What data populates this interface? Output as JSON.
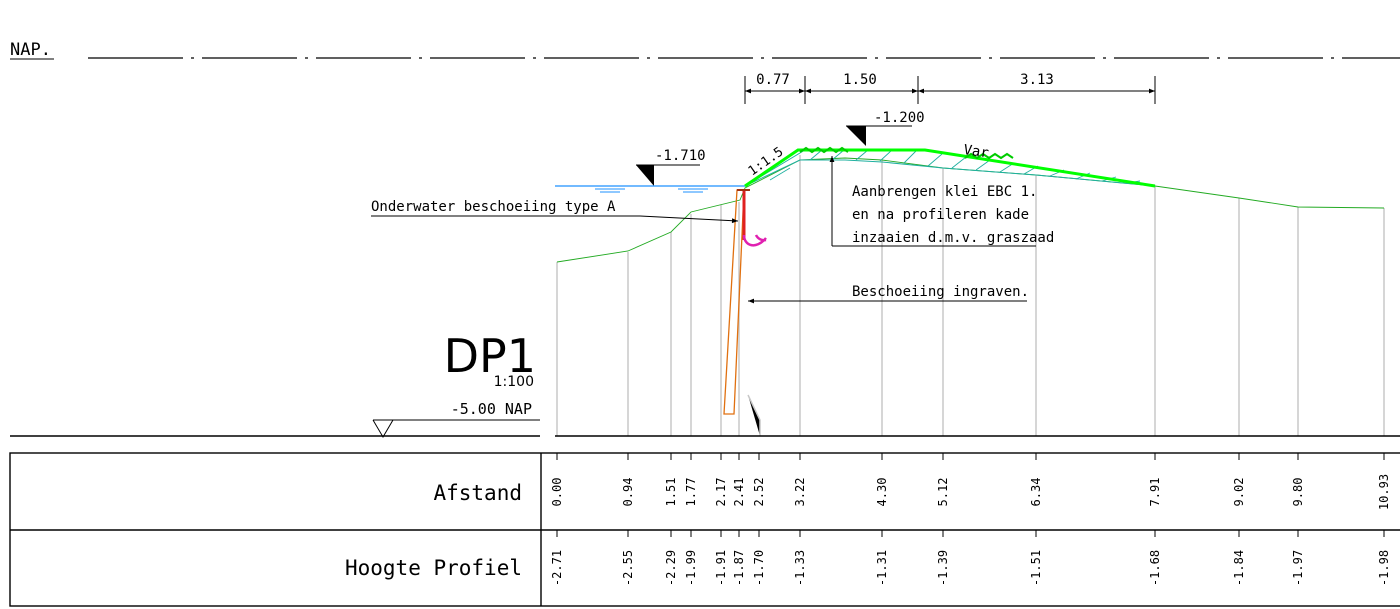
{
  "datum_label": "NAP.",
  "profile_name": "DP1",
  "scale": "1:100",
  "reference_level": "-5.00  NAP",
  "levels": {
    "water": "-1.710",
    "crest": "-1.200"
  },
  "slope_label": "1:1.5",
  "var_label": "Var",
  "dimensions": [
    "0.77",
    "1.50",
    "3.13"
  ],
  "annotations": {
    "onderwater": "Onderwater beschoeiing type A",
    "klei_line1": "Aanbrengen klei EBC 1.",
    "klei_line2": "en na profileren kade",
    "klei_line3": "inzaaien d.m.v. graszaad",
    "ingraven": "Beschoeiing ingraven."
  },
  "table": {
    "row1_label": "Afstand",
    "row2_label": "Hoogte Profiel",
    "afstand": [
      "0.00",
      "0.94",
      "1.51",
      "1.77",
      "2.17",
      "2.41",
      "2.52",
      "3.22",
      "4.30",
      "5.12",
      "6.34",
      "7.91",
      "9.02",
      "9.80",
      "10.93"
    ],
    "hoogte": [
      "-2.71",
      "-2.55",
      "-2.29",
      "-1.99",
      "-1.91",
      "-1.87",
      "-1.70",
      "-1.33",
      "-1.31",
      "-1.39",
      "-1.51",
      "-1.68",
      "-1.84",
      "-1.97",
      "-1.98"
    ]
  },
  "colors": {
    "ground": "#22aa22",
    "clay": "#00ff00",
    "hatch": "#20b0a0",
    "water": "#1e90ff",
    "sheet_pile": "#e07010",
    "pile_top": "#e02020",
    "hook": "#e020b0",
    "station_line": "#c8c8c8"
  }
}
